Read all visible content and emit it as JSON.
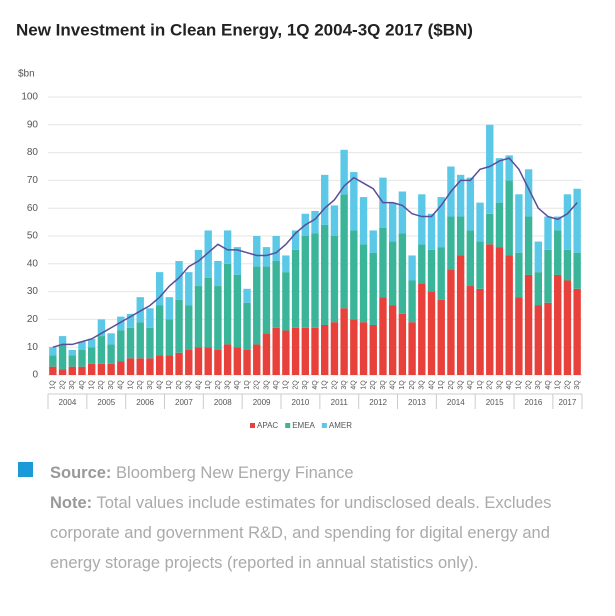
{
  "chart_data": {
    "type": "stacked_bar",
    "title": "New Investment in Clean Energy, 1Q 2004-3Q 2017 ($BN)",
    "y_label": "$bn",
    "categories": [
      "1Q",
      "2Q",
      "3Q",
      "4Q",
      "1Q",
      "2Q",
      "3Q",
      "4Q",
      "1Q",
      "2Q",
      "3Q",
      "4Q",
      "1Q",
      "2Q",
      "3Q",
      "4Q",
      "1Q",
      "2Q",
      "3Q",
      "4Q",
      "1Q",
      "2Q",
      "3Q",
      "4Q",
      "1Q",
      "2Q",
      "3Q",
      "4Q",
      "1Q",
      "2Q",
      "3Q",
      "4Q",
      "1Q",
      "2Q",
      "3Q",
      "4Q",
      "1Q",
      "2Q",
      "3Q",
      "4Q",
      "1Q",
      "2Q",
      "3Q",
      "4Q",
      "1Q",
      "2Q",
      "3Q",
      "4Q",
      "1Q",
      "2Q",
      "3Q",
      "4Q",
      "1Q",
      "2Q",
      "3Q"
    ],
    "years": [
      "2004",
      "2005",
      "2006",
      "2007",
      "2008",
      "2009",
      "2010",
      "2011",
      "2012",
      "2013",
      "2014",
      "2015",
      "2016",
      "2017"
    ],
    "series": [
      {
        "name": "APAC",
        "color": "#e8403a",
        "values": [
          3,
          2,
          3,
          3,
          4,
          4,
          4,
          5,
          6,
          6,
          6,
          7,
          7,
          8,
          9,
          10,
          10,
          9,
          11,
          10,
          9,
          11,
          15,
          17,
          16,
          17,
          17,
          17,
          18,
          19,
          24,
          20,
          19,
          18,
          28,
          25,
          22,
          19,
          33,
          30,
          27,
          38,
          43,
          32,
          31,
          47,
          46,
          43,
          28,
          36,
          25,
          26,
          36,
          34,
          31
        ]
      },
      {
        "name": "EMEA",
        "color": "#3ab59a",
        "values": [
          4,
          9,
          4,
          6,
          6,
          10,
          7,
          11,
          11,
          13,
          11,
          18,
          13,
          19,
          16,
          22,
          25,
          23,
          29,
          26,
          17,
          28,
          24,
          24,
          21,
          28,
          33,
          34,
          36,
          31,
          41,
          32,
          28,
          26,
          25,
          23,
          29,
          15,
          14,
          15,
          19,
          19,
          14,
          20,
          17,
          11,
          16,
          27,
          16,
          21,
          12,
          19,
          16,
          11,
          13
        ]
      },
      {
        "name": "AMER",
        "color": "#5bc8e8",
        "values": [
          3,
          3,
          2,
          3,
          3,
          6,
          4,
          5,
          5,
          9,
          7,
          12,
          8,
          14,
          12,
          13,
          17,
          9,
          12,
          10,
          5,
          11,
          7,
          9,
          6,
          7,
          8,
          8,
          18,
          11,
          16,
          21,
          17,
          8,
          18,
          14,
          15,
          9,
          18,
          13,
          18,
          18,
          15,
          19,
          14,
          32,
          16,
          9,
          21,
          17,
          11,
          12,
          5,
          20,
          23
        ]
      }
    ],
    "trend": {
      "color": "#5a4e9a",
      "values": [
        10,
        11,
        11,
        12,
        13,
        15,
        17,
        19,
        21,
        23,
        25,
        28,
        32,
        35,
        39,
        41,
        44,
        47,
        45,
        45,
        44,
        43,
        43,
        44,
        47,
        51,
        54,
        56,
        60,
        63,
        68,
        71,
        69,
        67,
        62,
        62,
        61,
        58,
        57,
        57,
        61,
        66,
        70,
        70,
        74,
        75,
        77,
        78,
        74,
        67,
        60,
        57,
        56,
        58,
        62
      ]
    },
    "ylim": [
      0,
      100
    ],
    "yticks": [
      0,
      10,
      20,
      30,
      40,
      50,
      60,
      70,
      80,
      90,
      100
    ],
    "grid": true
  },
  "footer": {
    "source_label": "Source:",
    "source": "Bloomberg New Energy Finance",
    "note_label": "Note:",
    "note": "Total values include estimates for undisclosed deals. Excludes corporate and government R&D, and spending for digital energy and energy storage projects (reported in annual statistics only)."
  }
}
